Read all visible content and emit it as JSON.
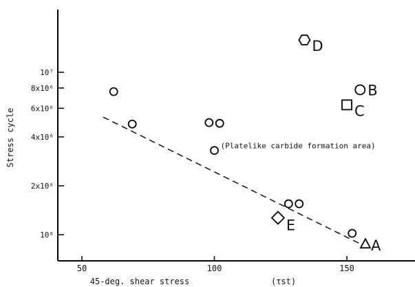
{
  "chart_data": {
    "type": "scatter",
    "xlabel": "45-deg. shear stress",
    "xlabel_symbol": "(τst)",
    "ylabel": "Stress cycle",
    "xlim": [
      40,
      175
    ],
    "ylim": [
      700000,
      22000000
    ],
    "y_scale": "log",
    "grid": false,
    "x_ticks": [
      50,
      100,
      150
    ],
    "y_ticks": [
      {
        "value": 1000000,
        "label": "10⁶"
      },
      {
        "value": 2000000,
        "label": "2x10⁶"
      },
      {
        "value": 4000000,
        "label": "4x10⁶"
      },
      {
        "value": 6000000,
        "label": "6x10⁶"
      },
      {
        "value": 8000000,
        "label": "8x10⁶"
      },
      {
        "value": 10000000,
        "label": "10⁷"
      }
    ],
    "points": [
      {
        "x": 62,
        "y": 7600000,
        "marker": "circle"
      },
      {
        "x": 69,
        "y": 4800000,
        "marker": "circle"
      },
      {
        "x": 98,
        "y": 4900000,
        "marker": "circle"
      },
      {
        "x": 102,
        "y": 4850000,
        "marker": "circle"
      },
      {
        "x": 100,
        "y": 3300000,
        "marker": "circle"
      },
      {
        "x": 128,
        "y": 1550000,
        "marker": "circle"
      },
      {
        "x": 132,
        "y": 1550000,
        "marker": "circle"
      },
      {
        "x": 152,
        "y": 1020000,
        "marker": "circle"
      }
    ],
    "labeled_points": [
      {
        "label": "A",
        "x": 157,
        "y": 880000,
        "marker": "triangle"
      },
      {
        "label": "B",
        "x": 155,
        "y": 7800000,
        "marker": "circle"
      },
      {
        "label": "C",
        "x": 150,
        "y": 6300000,
        "marker": "square"
      },
      {
        "label": "D",
        "x": 134,
        "y": 15800000,
        "marker": "hexagon"
      },
      {
        "label": "E",
        "x": 124,
        "y": 1270000,
        "marker": "diamond"
      }
    ],
    "trend_line": {
      "style": "dashed",
      "from": {
        "x": 58,
        "y": 5300000
      },
      "to": {
        "x": 155,
        "y": 880000
      }
    },
    "annotations": [
      {
        "text": "(Platelike carbide formation area)",
        "x": 100,
        "y": 3300000
      }
    ]
  }
}
